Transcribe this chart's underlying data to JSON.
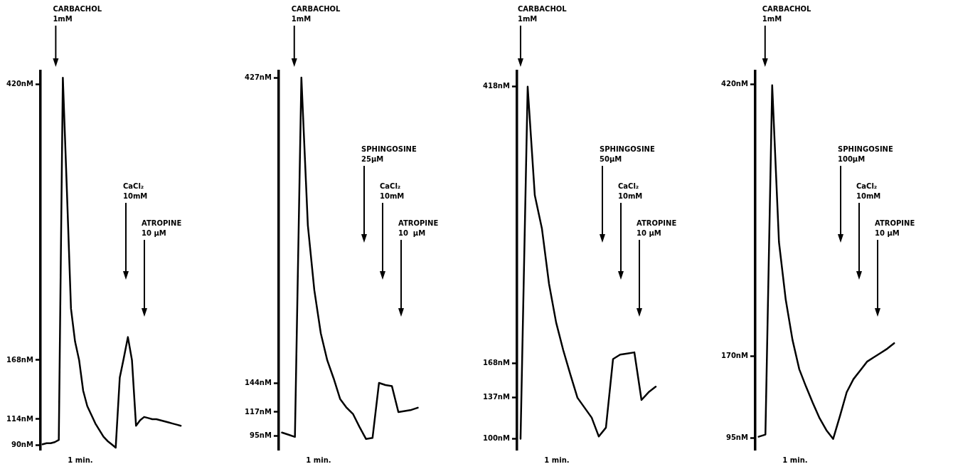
{
  "chart_data": [
    {
      "type": "line",
      "categories": [
        null,
        null,
        null,
        null,
        null,
        null,
        null,
        null,
        null,
        null,
        null,
        null,
        null,
        null,
        null,
        null,
        null,
        null,
        null,
        null,
        null,
        null,
        null,
        null,
        null,
        null,
        null,
        null,
        null,
        null,
        null,
        null,
        null,
        null,
        null
      ],
      "ylim": [
        86,
        432
      ],
      "yticks": [
        {
          "value": 90,
          "label": "90nM"
        },
        {
          "value": 114,
          "label": "114nM"
        },
        {
          "value": 168,
          "label": "168nM"
        },
        {
          "value": 420,
          "label": "420nM"
        }
      ],
      "tick_labels": "y",
      "legend": false,
      "grid": false,
      "marker": "none",
      "line_style": "solid",
      "series": [
        {
          "color": "#000000",
          "values": [
            91,
            92,
            92,
            93,
            95,
            426,
            322,
            215,
            185,
            168,
            140,
            126,
            118,
            110,
            104,
            98,
            94,
            91,
            88,
            152,
            170,
            189,
            168,
            108,
            113,
            116,
            115,
            114,
            114,
            113,
            112,
            111,
            110,
            109,
            108
          ]
        }
      ],
      "annotations": [
        "CARBACHOL\n1mM",
        "CaCl₂\n10mM",
        "ATROPINE\n10 μM",
        "1 min."
      ]
    },
    {
      "type": "line",
      "categories": [
        null,
        null,
        null,
        null,
        null,
        null,
        null,
        null,
        null,
        null,
        null,
        null,
        null,
        null,
        null,
        null,
        null,
        null,
        null,
        null,
        null,
        null
      ],
      "ylim": [
        82,
        433
      ],
      "yticks": [
        {
          "value": 95,
          "label": "95nM"
        },
        {
          "value": 117,
          "label": "117nM"
        },
        {
          "value": 144,
          "label": "144nM"
        },
        {
          "value": 427,
          "label": "427nM"
        }
      ],
      "tick_labels": "y",
      "legend": false,
      "grid": false,
      "marker": "none",
      "line_style": "solid",
      "series": [
        {
          "color": "#000000",
          "values": [
            98,
            96,
            94,
            427,
            290,
            230,
            190,
            165,
            148,
            129,
            121,
            115,
            103,
            92,
            93,
            144,
            142,
            141,
            117,
            118,
            119,
            121
          ]
        }
      ],
      "annotations": [
        "CARBACHOL\n1mM",
        "SPHINGOSINE\n25μM",
        "CaCl₂\n10mM",
        "ATROPINE\n10  μM",
        "1 min."
      ]
    },
    {
      "type": "line",
      "categories": [
        null,
        null,
        null,
        null,
        null,
        null,
        null,
        null,
        null,
        null,
        null,
        null,
        null,
        null,
        null,
        null,
        null,
        null,
        null,
        null
      ],
      "ylim": [
        90,
        432
      ],
      "yticks": [
        {
          "value": 100,
          "label": "100nM"
        },
        {
          "value": 137,
          "label": "137nM"
        },
        {
          "value": 168,
          "label": "168nM"
        },
        {
          "value": 418,
          "label": "418nM"
        }
      ],
      "tick_labels": "y",
      "legend": false,
      "grid": false,
      "marker": "none",
      "line_style": "solid",
      "series": [
        {
          "color": "#000000",
          "values": [
            100,
            418,
            320,
            290,
            240,
            205,
            180,
            158,
            137,
            128,
            119,
            102,
            110,
            172,
            176,
            177,
            178,
            135,
            142,
            147
          ]
        }
      ],
      "annotations": [
        "CARBACHOL\n1mM",
        "SPHINGOSINE\n50μM",
        "CaCl₂\n10mM",
        "ATROPINE\n10 μM",
        "1 min."
      ]
    },
    {
      "type": "line",
      "categories": [
        null,
        null,
        null,
        null,
        null,
        null,
        null,
        null,
        null,
        null,
        null,
        null,
        null,
        null,
        null,
        null,
        null,
        null,
        null,
        null,
        null
      ],
      "ylim": [
        84,
        432
      ],
      "yticks": [
        {
          "value": 95,
          "label": "95nM"
        },
        {
          "value": 170,
          "label": "170nM"
        },
        {
          "value": 420,
          "label": "420nM"
        }
      ],
      "tick_labels": "y",
      "legend": false,
      "grid": false,
      "marker": "none",
      "line_style": "solid",
      "series": [
        {
          "color": "#000000",
          "values": [
            96,
            98,
            419,
            275,
            222,
            185,
            158,
            142,
            127,
            113,
            102,
            94,
            115,
            137,
            149,
            157,
            165,
            169,
            173,
            177,
            182
          ]
        }
      ],
      "annotations": [
        "CARBACHOL\n1mM",
        "SPHINGOSINE\n100μM",
        "CaCl₂\n10mM",
        "ATROPINE\n10 μM",
        "1 min."
      ]
    }
  ]
}
